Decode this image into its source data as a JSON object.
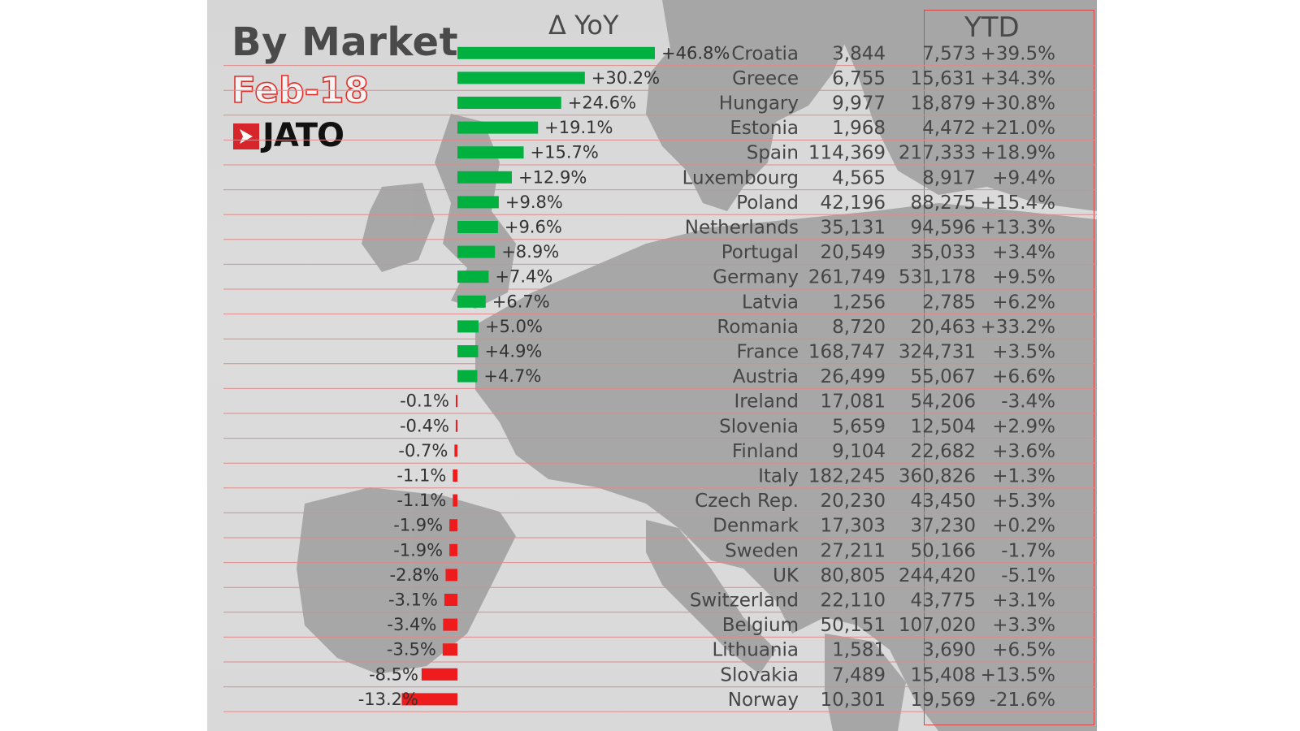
{
  "header": {
    "title": "By Market",
    "subtitle": "Feb-18",
    "logo_text": "JATO",
    "yoy_label": "Δ YoY",
    "ytd_label": "YTD"
  },
  "colors": {
    "positive_bar": "#00b140",
    "negative_bar": "#ee1c1c",
    "positive_text": "#1e9a2e",
    "negative_text": "#e11b1b",
    "row_line": "#e08a8a",
    "ytd_border": "#d94848"
  },
  "chart_data": {
    "type": "bar",
    "orientation": "horizontal",
    "title": "By Market",
    "subtitle": "Feb-18",
    "bar_series_label": "Δ YoY",
    "categories": [
      "Croatia",
      "Greece",
      "Hungary",
      "Estonia",
      "Spain",
      "Luxembourg",
      "Poland",
      "Netherlands",
      "Portugal",
      "Germany",
      "Latvia",
      "Romania",
      "France",
      "Austria",
      "Ireland",
      "Slovenia",
      "Finland",
      "Italy",
      "Czech Rep.",
      "Denmark",
      "Sweden",
      "UK",
      "Switzerland",
      "Belgium",
      "Lithuania",
      "Slovakia",
      "Norway"
    ],
    "yoy_values": [
      46.8,
      30.2,
      24.6,
      19.1,
      15.7,
      12.9,
      9.8,
      9.6,
      8.9,
      7.4,
      6.7,
      5.0,
      4.9,
      4.7,
      -0.1,
      -0.4,
      -0.7,
      -1.1,
      -1.1,
      -1.9,
      -1.9,
      -2.8,
      -3.1,
      -3.4,
      -3.5,
      -8.5,
      -13.2
    ],
    "yoy_labels": [
      "+46.8%",
      "+30.2%",
      "+24.6%",
      "+19.1%",
      "+15.7%",
      "+12.9%",
      "+9.8%",
      "+9.6%",
      "+8.9%",
      "+7.4%",
      "+6.7%",
      "+5.0%",
      "+4.9%",
      "+4.7%",
      "-0.1%",
      "-0.4%",
      "-0.7%",
      "-1.1%",
      "-1.1%",
      "-1.9%",
      "-1.9%",
      "-2.8%",
      "-3.1%",
      "-3.4%",
      "-3.5%",
      "-8.5%",
      "-13.2%"
    ],
    "month_volume": [
      "3,844",
      "6,755",
      "9,977",
      "1,968",
      "114,369",
      "4,565",
      "42,196",
      "35,131",
      "20,549",
      "261,749",
      "1,256",
      "8,720",
      "168,747",
      "26,499",
      "17,081",
      "5,659",
      "9,104",
      "182,245",
      "20,230",
      "17,303",
      "27,211",
      "80,805",
      "22,110",
      "50,151",
      "1,581",
      "7,489",
      "10,301"
    ],
    "ytd_volume": [
      "7,573",
      "15,631",
      "18,879",
      "4,472",
      "217,333",
      "8,917",
      "88,275",
      "94,596",
      "35,033",
      "531,178",
      "2,785",
      "20,463",
      "324,731",
      "55,067",
      "54,206",
      "12,504",
      "22,682",
      "360,826",
      "43,450",
      "37,230",
      "50,166",
      "244,420",
      "43,775",
      "107,020",
      "3,690",
      "15,408",
      "19,569"
    ],
    "ytd_growth": [
      "+39.5%",
      "+34.3%",
      "+30.8%",
      "+21.0%",
      "+18.9%",
      "+9.4%",
      "+15.4%",
      "+13.3%",
      "+3.4%",
      "+9.5%",
      "+6.2%",
      "+33.2%",
      "+3.5%",
      "+6.6%",
      "-3.4%",
      "+2.9%",
      "+3.6%",
      "+1.3%",
      "+5.3%",
      "+0.2%",
      "-1.7%",
      "-5.1%",
      "+3.1%",
      "+3.3%",
      "+6.5%",
      "+13.5%",
      "-21.6%"
    ],
    "xlim": [
      -13.2,
      46.8
    ],
    "grid": false,
    "legend": "none"
  }
}
